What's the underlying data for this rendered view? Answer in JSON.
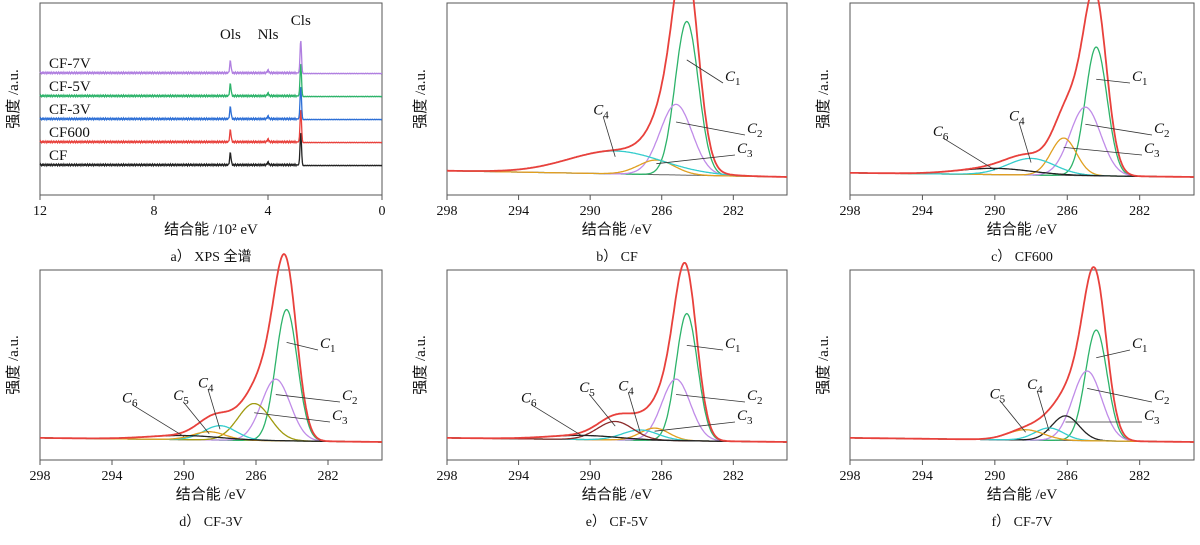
{
  "chart_data": [
    {
      "id": "a",
      "type": "line",
      "caption": "a）  XPS 全谱",
      "xlabel": "结合能 /10² eV",
      "ylabel": "强度 /a.u.",
      "xlim": [
        12,
        0
      ],
      "xticks": [
        12,
        8,
        4,
        0
      ],
      "series": [
        {
          "name": "CF",
          "color": "#222222",
          "offset": 0
        },
        {
          "name": "CF600",
          "color": "#e8413c",
          "offset": 1
        },
        {
          "name": "CF-3V",
          "color": "#2d6fd6",
          "offset": 2
        },
        {
          "name": "CF-5V",
          "color": "#2db36a",
          "offset": 3
        },
        {
          "name": "CF-7V",
          "color": "#b07fe0",
          "offset": 4
        }
      ],
      "peaks": [
        {
          "label": "Ols",
          "x": 5.32,
          "h": 0.55
        },
        {
          "label": "Nls",
          "x": 4.0,
          "h": 0.12
        },
        {
          "label": "Cls",
          "x": 2.85,
          "h": 1.5
        }
      ]
    },
    {
      "id": "b",
      "type": "line",
      "caption": "b）   CF",
      "xlabel": "结合能 /eV",
      "ylabel": "强度 /a.u.",
      "xlim": [
        298,
        279
      ],
      "xticks": [
        298,
        294,
        290,
        286,
        282
      ],
      "components": [
        {
          "label": "C",
          "sub": "1",
          "center": 284.6,
          "height": 0.74,
          "width": 0.65,
          "color": "#2db36a"
        },
        {
          "label": "C",
          "sub": "2",
          "center": 285.2,
          "height": 0.34,
          "width": 0.9,
          "color": "#c08ce8"
        },
        {
          "label": "C",
          "sub": "3",
          "center": 286.3,
          "height": 0.07,
          "width": 1.0,
          "color": "#e0a020"
        },
        {
          "label": "C",
          "sub": "4",
          "center": 288.6,
          "height": 0.11,
          "width": 2.6,
          "color": "#33cccc"
        }
      ],
      "envelope_color": "#e8413c",
      "baseline": 0.03
    },
    {
      "id": "c",
      "type": "line",
      "caption": "c）   CF600",
      "xlabel": "结合能 /eV",
      "ylabel": "强度 /a.u.",
      "xlim": [
        298,
        279
      ],
      "xticks": [
        298,
        294,
        290,
        286,
        282
      ],
      "components": [
        {
          "label": "C",
          "sub": "1",
          "center": 284.4,
          "height": 0.62,
          "width": 0.6,
          "color": "#2db36a"
        },
        {
          "label": "C",
          "sub": "2",
          "center": 285.0,
          "height": 0.33,
          "width": 0.85,
          "color": "#c08ce8"
        },
        {
          "label": "C",
          "sub": "3",
          "center": 286.2,
          "height": 0.18,
          "width": 0.7,
          "color": "#e0a020"
        },
        {
          "label": "C",
          "sub": "4",
          "center": 288.0,
          "height": 0.08,
          "width": 1.3,
          "color": "#33cccc"
        },
        {
          "label": "C",
          "sub": "6",
          "center": 290.0,
          "height": 0.03,
          "width": 2.0,
          "color": "#222222"
        }
      ],
      "envelope_color": "#e8413c",
      "baseline": 0.02
    },
    {
      "id": "d",
      "type": "line",
      "caption": "d）   CF-3V",
      "xlabel": "结合能 /eV",
      "ylabel": "强度 /a.u.",
      "xlim": [
        298,
        279
      ],
      "xticks": [
        298,
        294,
        290,
        286,
        282
      ],
      "components": [
        {
          "label": "C",
          "sub": "1",
          "center": 284.3,
          "height": 0.64,
          "width": 0.6,
          "color": "#2db36a"
        },
        {
          "label": "C",
          "sub": "2",
          "center": 284.9,
          "height": 0.3,
          "width": 0.8,
          "color": "#c08ce8"
        },
        {
          "label": "C",
          "sub": "3",
          "center": 286.1,
          "height": 0.18,
          "width": 0.9,
          "color": "#a09a10"
        },
        {
          "label": "C",
          "sub": "4",
          "center": 288.0,
          "height": 0.07,
          "width": 0.9,
          "color": "#33cccc"
        },
        {
          "label": "C",
          "sub": "5",
          "center": 288.6,
          "height": 0.04,
          "width": 0.9,
          "color": "#e0a020"
        },
        {
          "label": "C",
          "sub": "6",
          "center": 290.0,
          "height": 0.02,
          "width": 2.0,
          "color": "#222222"
        }
      ],
      "envelope_color": "#e8413c",
      "baseline": 0.02
    },
    {
      "id": "e",
      "type": "line",
      "caption": "e）   CF-5V",
      "xlabel": "结合能 /eV",
      "ylabel": "强度 /a.u.",
      "xlim": [
        298,
        279
      ],
      "xticks": [
        298,
        294,
        290,
        286,
        282
      ],
      "components": [
        {
          "label": "C",
          "sub": "1",
          "center": 284.6,
          "height": 0.62,
          "width": 0.6,
          "color": "#2db36a"
        },
        {
          "label": "C",
          "sub": "2",
          "center": 285.2,
          "height": 0.3,
          "width": 0.8,
          "color": "#c08ce8"
        },
        {
          "label": "C",
          "sub": "3",
          "center": 286.4,
          "height": 0.06,
          "width": 0.8,
          "color": "#e0a020"
        },
        {
          "label": "C",
          "sub": "4",
          "center": 287.2,
          "height": 0.05,
          "width": 1.0,
          "color": "#33cccc"
        },
        {
          "label": "C",
          "sub": "5",
          "center": 288.6,
          "height": 0.09,
          "width": 1.0,
          "color": "#8b2a2a"
        },
        {
          "label": "C",
          "sub": "6",
          "center": 290.4,
          "height": 0.02,
          "width": 2.0,
          "color": "#222222"
        }
      ],
      "envelope_color": "#e8413c",
      "baseline": 0.02
    },
    {
      "id": "f",
      "type": "line",
      "caption": "f）   CF-7V",
      "xlabel": "结合能 /eV",
      "ylabel": "强度 /a.u.",
      "xlim": [
        298,
        279
      ],
      "xticks": [
        298,
        294,
        290,
        286,
        282
      ],
      "components": [
        {
          "label": "C",
          "sub": "1",
          "center": 284.4,
          "height": 0.54,
          "width": 0.6,
          "color": "#2db36a"
        },
        {
          "label": "C",
          "sub": "2",
          "center": 284.9,
          "height": 0.34,
          "width": 0.8,
          "color": "#c08ce8"
        },
        {
          "label": "C",
          "sub": "3",
          "center": 286.1,
          "height": 0.12,
          "width": 0.75,
          "color": "#222222"
        },
        {
          "label": "C",
          "sub": "4",
          "center": 287.0,
          "height": 0.06,
          "width": 0.8,
          "color": "#33cccc"
        },
        {
          "label": "C",
          "sub": "5",
          "center": 288.3,
          "height": 0.05,
          "width": 1.0,
          "color": "#e0a020"
        }
      ],
      "envelope_color": "#e8413c",
      "baseline": 0.02
    }
  ]
}
